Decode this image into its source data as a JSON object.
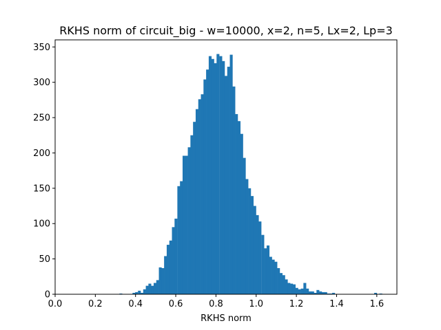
{
  "chart_data": {
    "type": "bar",
    "title": "RKHS norm of circuit_big - w=10000, x=2, n=5, Lx=2, Lp=3",
    "xlabel": "RKHS norm",
    "ylabel": "",
    "xlim": [
      0.0,
      1.7
    ],
    "ylim": [
      0,
      360
    ],
    "x_ticks": [
      "0.0",
      "0.2",
      "0.4",
      "0.6",
      "0.8",
      "1.0",
      "1.2",
      "1.4",
      "1.6"
    ],
    "y_ticks": [
      "0",
      "50",
      "100",
      "150",
      "200",
      "250",
      "300",
      "350"
    ],
    "grid": false,
    "color": "#1f77b4",
    "bin_width": 0.0131,
    "series": [
      {
        "bin_starts": [
          0.32,
          0.333,
          0.346,
          0.359,
          0.372,
          0.385,
          0.398,
          0.412,
          0.425,
          0.438,
          0.451,
          0.464,
          0.477,
          0.49,
          0.503,
          0.516,
          0.529,
          0.542,
          0.555,
          0.568,
          0.581,
          0.594,
          0.608,
          0.621,
          0.634,
          0.647,
          0.66,
          0.673,
          0.686,
          0.699,
          0.712,
          0.725,
          0.738,
          0.751,
          0.764,
          0.777,
          0.79,
          0.803,
          0.817,
          0.83,
          0.843,
          0.856,
          0.869,
          0.882,
          0.895,
          0.908,
          0.921,
          0.934,
          0.947,
          0.96,
          0.973,
          0.986,
          0.999,
          1.012,
          1.026,
          1.039,
          1.052,
          1.065,
          1.078,
          1.091,
          1.104,
          1.117,
          1.13,
          1.143,
          1.156,
          1.169,
          1.182,
          1.195,
          1.208,
          1.222,
          1.235,
          1.248,
          1.261,
          1.274,
          1.287,
          1.3,
          1.313,
          1.326,
          1.339,
          1.352,
          1.365,
          1.378,
          1.391,
          1.404,
          1.418,
          1.431,
          1.444,
          1.457,
          1.47,
          1.483,
          1.496,
          1.509,
          1.522,
          1.535,
          1.548,
          1.561,
          1.574,
          1.587,
          1.6,
          1.613,
          1.626
        ],
        "counts": [
          1,
          0,
          0,
          0,
          0,
          2,
          3,
          5,
          2,
          7,
          12,
          15,
          12,
          16,
          20,
          38,
          37,
          54,
          70,
          76,
          95,
          107,
          153,
          160,
          196,
          196,
          208,
          225,
          244,
          262,
          276,
          283,
          304,
          318,
          337,
          333,
          327,
          340,
          337,
          330,
          309,
          322,
          339,
          294,
          255,
          245,
          227,
          193,
          163,
          150,
          139,
          125,
          112,
          103,
          84,
          65,
          69,
          53,
          49,
          46,
          37,
          30,
          27,
          21,
          16,
          15,
          14,
          9,
          7,
          8,
          16,
          8,
          4,
          4,
          2,
          6,
          4,
          3,
          3,
          1,
          1,
          2,
          0,
          0,
          0,
          0,
          0,
          0,
          0,
          0,
          0,
          0,
          0,
          0,
          0,
          0,
          0,
          2,
          0,
          1,
          0
        ]
      }
    ]
  }
}
